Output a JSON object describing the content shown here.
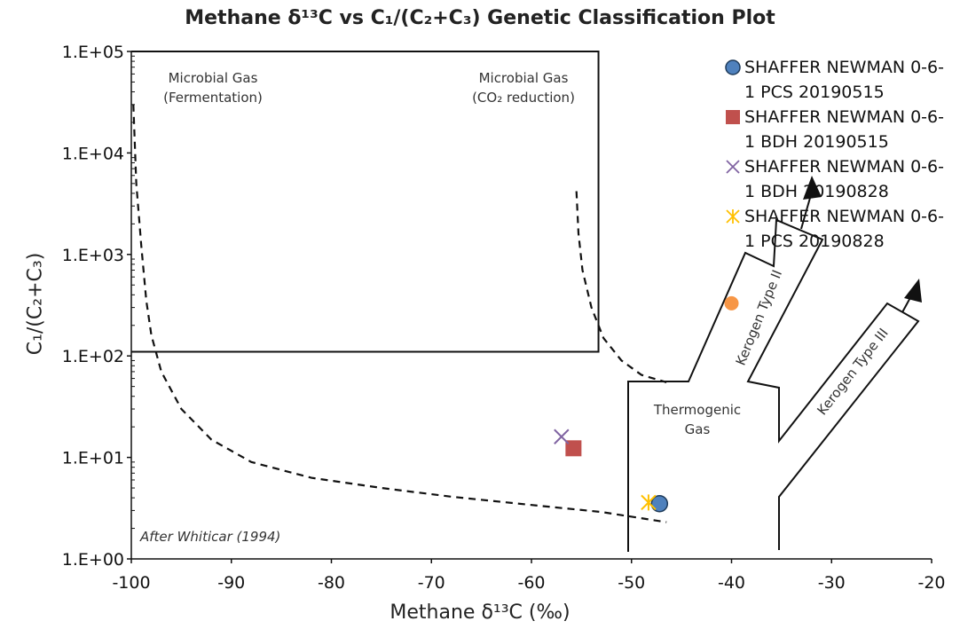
{
  "chart_data": {
    "type": "scatter",
    "title": "Methane δ¹³C vs C₁/(C₂+C₃) Genetic Classification Plot",
    "xlabel": "Methane δ¹³C (‰)",
    "ylabel": "C₁/(C₂+C₃)",
    "xlim": [
      -100,
      -20
    ],
    "ylim": [
      1,
      100000
    ],
    "yscale": "log",
    "x_ticks": [
      "-100",
      "-90",
      "-80",
      "-70",
      "-60",
      "-50",
      "-40",
      "-30",
      "-20"
    ],
    "y_ticks": [
      "1.E+00",
      "1.E+01",
      "1.E+02",
      "1.E+03",
      "1.E+04",
      "1.E+05"
    ],
    "grid": false,
    "legend_position": "top-right",
    "series": [
      {
        "name": "SHAFFER NEWMAN 0-6-1 PCS 20190515",
        "marker": "circle",
        "color": "#4f81bd",
        "points": [
          {
            "x": -47.2,
            "y": 3.5
          }
        ]
      },
      {
        "name": "SHAFFER NEWMAN 0-6-1 BDH 20190515",
        "marker": "square",
        "color": "#c0504d",
        "points": [
          {
            "x": -55.8,
            "y": 12.3
          }
        ]
      },
      {
        "name": "SHAFFER NEWMAN 0-6-1 BDH 20190828",
        "marker": "x",
        "color": "#8064a2",
        "points": [
          {
            "x": -57.0,
            "y": 16.0
          }
        ]
      },
      {
        "name": "SHAFFER NEWMAN 0-6-1 PCS 20190828",
        "marker": "star",
        "color": "#ffc000",
        "points": [
          {
            "x": -48.3,
            "y": 3.6
          }
        ]
      }
    ],
    "extra_points": [
      {
        "x": -40,
        "y": 330,
        "color": "#f79646"
      }
    ],
    "annotations": {
      "microbial_fermentation": [
        "Microbial Gas",
        "(Fermentation)"
      ],
      "microbial_co2": [
        "Microbial Gas",
        "(CO₂ reduction)"
      ],
      "thermogenic": [
        "Thermogenic",
        "Gas"
      ],
      "kerogen_2": "Kerogen Type II",
      "kerogen_3": "Kerogen Type III",
      "citation": "After Whiticar (1994)"
    }
  }
}
